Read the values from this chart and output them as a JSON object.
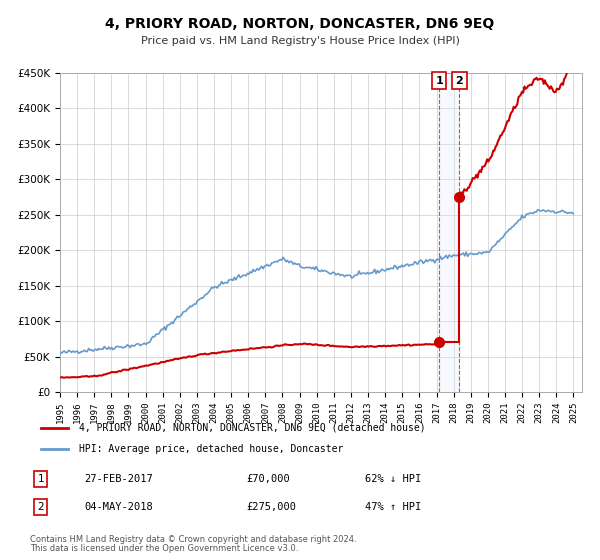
{
  "title": "4, PRIORY ROAD, NORTON, DONCASTER, DN6 9EQ",
  "subtitle": "Price paid vs. HM Land Registry's House Price Index (HPI)",
  "ylabel": "",
  "xlabel": "",
  "ylim": [
    0,
    450000
  ],
  "yticks": [
    0,
    50000,
    100000,
    150000,
    200000,
    250000,
    300000,
    350000,
    400000,
    450000
  ],
  "ytick_labels": [
    "£0",
    "£50K",
    "£100K",
    "£150K",
    "£200K",
    "£250K",
    "£300K",
    "£350K",
    "£400K",
    "£450K"
  ],
  "xlim_start": 1995.0,
  "xlim_end": 2025.5,
  "xticks": [
    1995,
    1996,
    1997,
    1998,
    1999,
    2000,
    2001,
    2002,
    2003,
    2004,
    2005,
    2006,
    2007,
    2008,
    2009,
    2010,
    2011,
    2012,
    2013,
    2014,
    2015,
    2016,
    2017,
    2018,
    2019,
    2020,
    2021,
    2022,
    2023,
    2024,
    2025
  ],
  "transaction1": {
    "date": 2017.16,
    "price": 70000,
    "label": "1",
    "pct": "62% ↓ HPI",
    "date_str": "27-FEB-2017"
  },
  "transaction2": {
    "date": 2018.34,
    "price": 275000,
    "label": "2",
    "pct": "47% ↑ HPI",
    "date_str": "04-MAY-2018"
  },
  "legend_line1": "4, PRIORY ROAD, NORTON, DONCASTER, DN6 9EQ (detached house)",
  "legend_line2": "HPI: Average price, detached house, Doncaster",
  "annotation1_date": "27-FEB-2017",
  "annotation1_price": "£70,000",
  "annotation1_pct": "62% ↓ HPI",
  "annotation2_date": "04-MAY-2018",
  "annotation2_price": "£275,000",
  "annotation2_pct": "47% ↑ HPI",
  "footnote1": "Contains HM Land Registry data © Crown copyright and database right 2024.",
  "footnote2": "This data is licensed under the Open Government Licence v3.0.",
  "property_color": "#cc0000",
  "hpi_color": "#6699cc",
  "shading_color": "#ddeeff",
  "background_color": "#ffffff",
  "grid_color": "#cccccc"
}
